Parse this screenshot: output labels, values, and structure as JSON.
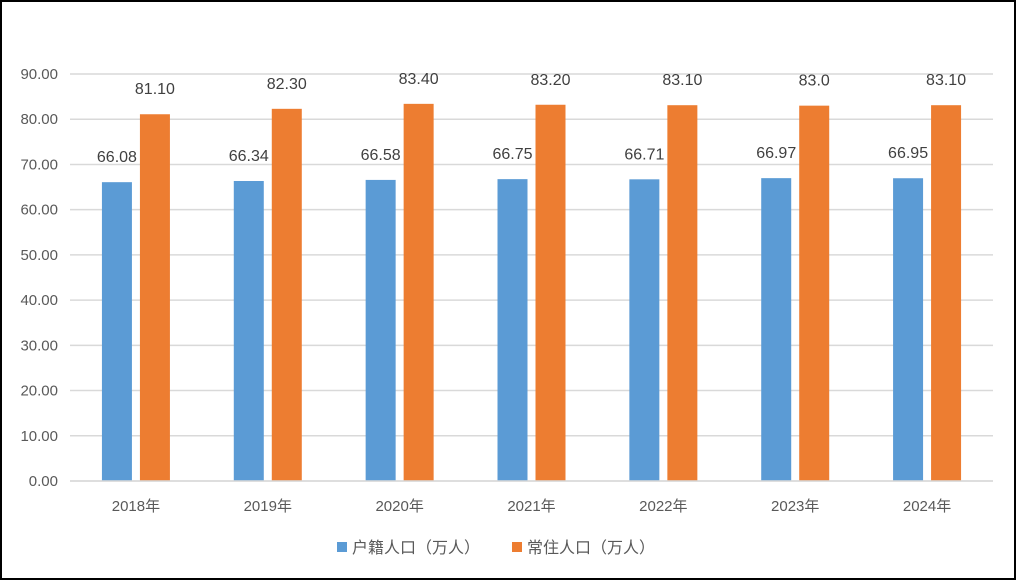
{
  "chart_data": {
    "type": "bar",
    "title": "",
    "xlabel": "",
    "ylabel": "",
    "categories": [
      "2018年",
      "2019年",
      "2020年",
      "2021年",
      "2022年",
      "2023年",
      "2024年"
    ],
    "series": [
      {
        "name": "户籍人口（万人）",
        "color": "#5B9BD5",
        "values": [
          66.08,
          66.34,
          66.58,
          66.75,
          66.71,
          66.97,
          66.95
        ],
        "labels": [
          "66.08",
          "66.34",
          "66.58",
          "66.75",
          "66.71",
          "66.97",
          "66.95"
        ]
      },
      {
        "name": "常住人口（万人）",
        "color": "#ED7D31",
        "values": [
          81.1,
          82.3,
          83.4,
          83.2,
          83.1,
          83.0,
          83.1
        ],
        "labels": [
          "81.10",
          "82.30",
          "83.40",
          "83.20",
          "83.10",
          "83.0",
          "83.10"
        ]
      }
    ],
    "ylim": [
      0,
      90
    ],
    "yticks": [
      "0.00",
      "10.00",
      "20.00",
      "30.00",
      "40.00",
      "50.00",
      "60.00",
      "70.00",
      "80.00",
      "90.00"
    ],
    "grid": true,
    "legend": "bottom"
  }
}
